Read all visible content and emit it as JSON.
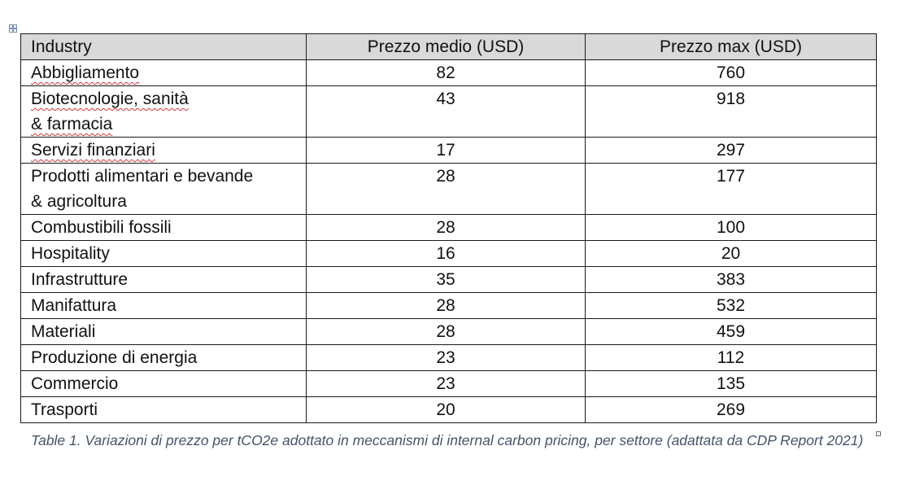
{
  "table": {
    "headers": [
      "Industry",
      "Prezzo medio (USD)",
      "Prezzo max (USD)"
    ],
    "rows": [
      {
        "industry": "Abbigliamento",
        "medio": "82",
        "max": "760"
      },
      {
        "industry_line1": "Biotecnologie, sanità",
        "industry_line2": "& farmacia",
        "medio": "43",
        "max": "918"
      },
      {
        "industry": "Servizi finanziari",
        "medio": "17",
        "max": "297"
      },
      {
        "industry_line1": "Prodotti alimentari e bevande",
        "industry_line2": "& agricoltura",
        "medio": "28",
        "max": "177"
      },
      {
        "industry": "Combustibili fossili",
        "medio": "28",
        "max": "100"
      },
      {
        "industry": "Hospitality",
        "medio": "16",
        "max": "20"
      },
      {
        "industry": "Infrastrutture",
        "medio": "35",
        "max": "383"
      },
      {
        "industry": "Manifattura",
        "medio": "28",
        "max": "532"
      },
      {
        "industry": "Materiali",
        "medio": "28",
        "max": "459"
      },
      {
        "industry": "Produzione di energia",
        "medio": "23",
        "max": "112"
      },
      {
        "industry": "Commercio",
        "medio": "23",
        "max": "135"
      },
      {
        "industry": "Trasporti",
        "medio": "20",
        "max": "269"
      }
    ]
  },
  "caption": "Table 1. Variazioni di prezzo per tCO2e adottato in meccanismi di internal carbon pricing, per settore (adattata da CDP Report 2021)",
  "colors": {
    "header_bg": "#d9d9d9",
    "caption": "#44546a",
    "spellcheck": "#d13438"
  },
  "icons": {
    "table_move_handle": "move-arrows-icon",
    "table_resize_handle": "resize-handle-icon"
  }
}
